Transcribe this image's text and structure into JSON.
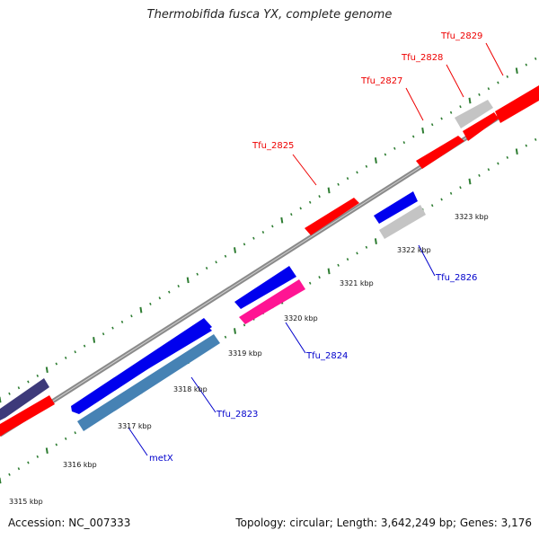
{
  "title": "Thermobifida fusca YX, complete genome",
  "footer": {
    "accession": "Accession: NC_007333",
    "summary": "Topology: circular; Length: 3,642,249 bp; Genes: 3,176"
  },
  "colors": {
    "backbone": "#8c8c8c",
    "ticks": "#2e7d32",
    "red_gene": "#ff0000",
    "blue_gene": "#0000ee",
    "label_red": "#ee0000",
    "label_blue": "#0000cc"
  },
  "scale_labels": [
    "3315 kbp",
    "3316 kbp",
    "3317 kbp",
    "3318 kbp",
    "3319 kbp",
    "3320 kbp",
    "3321 kbp",
    "3322 kbp",
    "3323 kbp"
  ],
  "genes": [
    {
      "name": "Tfu_2823",
      "label": "Tfu_2823"
    },
    {
      "name": "metX",
      "label": "metX"
    },
    {
      "name": "Tfu_2824",
      "label": "Tfu_2824"
    },
    {
      "name": "Tfu_2825",
      "label": "Tfu_2825"
    },
    {
      "name": "Tfu_2826",
      "label": "Tfu_2826"
    },
    {
      "name": "Tfu_2827",
      "label": "Tfu_2827"
    },
    {
      "name": "Tfu_2828",
      "label": "Tfu_2828"
    },
    {
      "name": "Tfu_2829",
      "label": "Tfu_2829"
    }
  ]
}
